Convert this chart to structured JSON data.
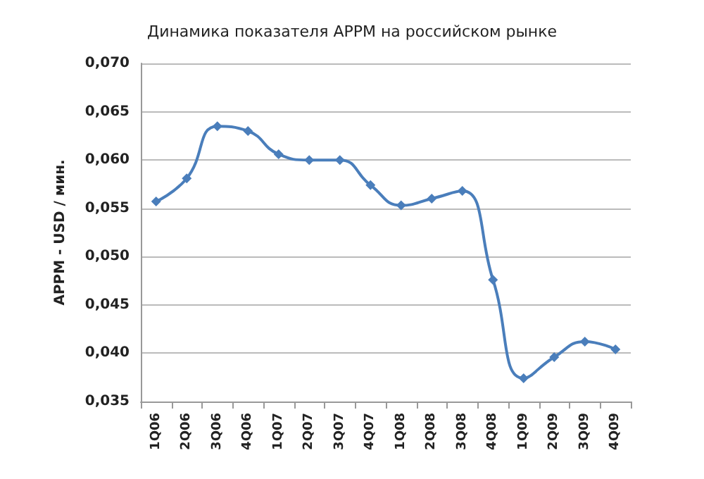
{
  "chart_data": {
    "type": "line",
    "title": "Динамика показателя APPM на российском рынке",
    "ylabel": "APPM - USD / мин.",
    "categories": [
      "1Q06",
      "2Q06",
      "3Q06",
      "4Q06",
      "1Q07",
      "2Q07",
      "3Q07",
      "4Q07",
      "1Q08",
      "2Q08",
      "3Q08",
      "4Q08",
      "1Q09",
      "2Q09",
      "3Q09",
      "4Q09"
    ],
    "series": [
      {
        "color": "#4a7ebb",
        "values": [
          0.0557,
          0.0581,
          0.0635,
          0.063,
          0.0606,
          0.06,
          0.06,
          0.0574,
          0.0553,
          0.056,
          0.0568,
          0.0476,
          0.0374,
          0.0396,
          0.0412,
          0.0404
        ]
      }
    ],
    "ylim": [
      0.035,
      0.07
    ],
    "yticks": [
      {
        "value": 0.035,
        "label": "0,035"
      },
      {
        "value": 0.04,
        "label": "0,040"
      },
      {
        "value": 0.045,
        "label": "0,045"
      },
      {
        "value": 0.05,
        "label": "0,050"
      },
      {
        "value": 0.055,
        "label": "0,055"
      },
      {
        "value": 0.06,
        "label": "0,060"
      },
      {
        "value": 0.065,
        "label": "0,065"
      },
      {
        "value": 0.07,
        "label": "0,070"
      }
    ],
    "grid": "y",
    "marker": "diamond",
    "line_style": "solid"
  }
}
